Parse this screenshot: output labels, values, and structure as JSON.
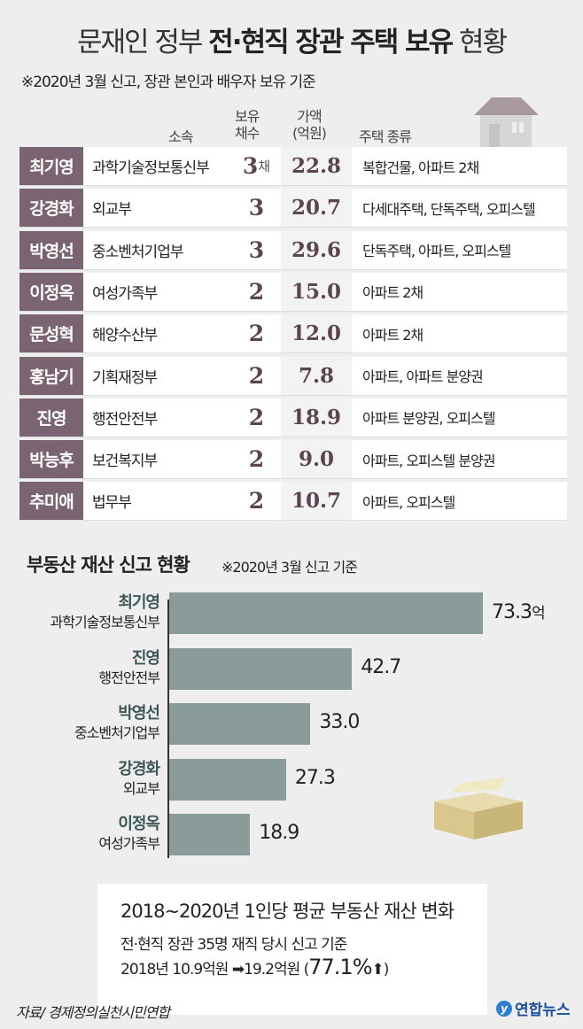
{
  "title_pre": "문재인 정부 ",
  "title_bold": "전·현직 장관 주택 보유",
  "title_post": " 현황",
  "note": "※2020년 3월 신고, 장관 본인과 배우자 보유 기준",
  "table": {
    "headers": {
      "dept": "소속",
      "count": "보유\n채수",
      "price": "가액\n(억원)",
      "type": "주택 종류"
    },
    "count_unit": "채",
    "rows": [
      {
        "name": "최기영",
        "dept": "과학기술정보통신부",
        "count": "3",
        "price": "22.8",
        "type": "복합건물, 아파트 2채"
      },
      {
        "name": "강경화",
        "dept": "외교부",
        "count": "3",
        "price": "20.7",
        "type": "다세대주택, 단독주택, 오피스텔"
      },
      {
        "name": "박영선",
        "dept": "중소벤처기업부",
        "count": "3",
        "price": "29.6",
        "type": "단독주택, 아파트, 오피스텔"
      },
      {
        "name": "이정옥",
        "dept": "여성가족부",
        "count": "2",
        "price": "15.0",
        "type": "아파트 2채"
      },
      {
        "name": "문성혁",
        "dept": "해양수산부",
        "count": "2",
        "price": "12.0",
        "type": "아파트 2채"
      },
      {
        "name": "홍남기",
        "dept": "기획재정부",
        "count": "2",
        "price": "7.8",
        "type": "아파트, 아파트 분양권"
      },
      {
        "name": "진영",
        "dept": "행전안전부",
        "count": "2",
        "price": "18.9",
        "type": "아파트 분양권, 오피스텔"
      },
      {
        "name": "박능후",
        "dept": "보건복지부",
        "count": "2",
        "price": "9.0",
        "type": "아파트, 오피스텔 분양권"
      },
      {
        "name": "추미애",
        "dept": "법무부",
        "count": "2",
        "price": "10.7",
        "type": "아파트, 오피스텔"
      }
    ]
  },
  "chart_data": {
    "type": "bar",
    "orientation": "horizontal",
    "title": "부동산 재산 신고 현황",
    "subtitle": "※2020년 3월 신고 기준",
    "unit": "억",
    "categories": [
      {
        "name": "최기영",
        "dept": "과학기술정보통신부"
      },
      {
        "name": "진영",
        "dept": "행전안전부"
      },
      {
        "name": "박영선",
        "dept": "중소벤처기업부"
      },
      {
        "name": "강경화",
        "dept": "외교부"
      },
      {
        "name": "이정옥",
        "dept": "여성가족부"
      }
    ],
    "values": [
      73.3,
      42.7,
      33.0,
      27.3,
      18.9
    ],
    "labels": [
      "73.3",
      "42.7",
      "33.0",
      "27.3",
      "18.9"
    ],
    "xlim": [
      0,
      73.3
    ],
    "bar_color": "#8a9c9a"
  },
  "summary": {
    "title": "2018~2020년 1인당 평균 부동산 재산 변화",
    "subtitle": "전·현직 장관 35명 재직 당시 신고 기준",
    "line": "2018년 10.9억원 ➡19.2억원 (",
    "pct": "77.1%",
    "arrow": "⬆",
    "close": ")"
  },
  "source": "자료/ 경제정의실천시민연합",
  "logo": "연합뉴스",
  "colors": {
    "name_cell": "#7b6471",
    "accent": "#5a4550"
  }
}
